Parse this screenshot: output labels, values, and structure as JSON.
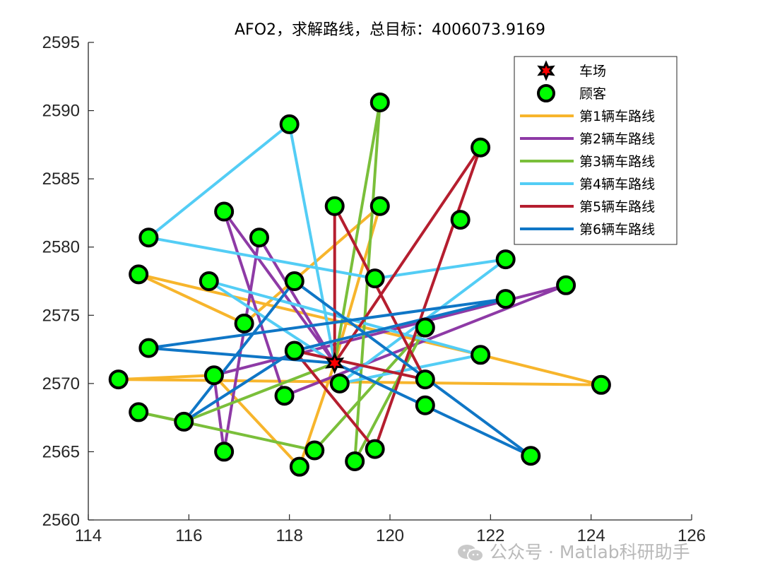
{
  "chart_data": {
    "type": "line",
    "title": "AFO2，求解路线，总目标：4006073.9169",
    "xlabel": "",
    "ylabel": "",
    "xlim": [
      114,
      126
    ],
    "ylim": [
      2560,
      2595
    ],
    "xticks": [
      114,
      116,
      118,
      120,
      122,
      124,
      126
    ],
    "yticks": [
      2560,
      2565,
      2570,
      2575,
      2580,
      2585,
      2590,
      2595
    ],
    "xtick_labels": [
      "114",
      "116",
      "118",
      "120",
      "122",
      "124",
      "126"
    ],
    "ytick_labels": [
      "2560",
      "2565",
      "2570",
      "2575",
      "2580",
      "2585",
      "2590",
      "2595"
    ],
    "grid": false,
    "legend_position": "top-right",
    "depot": {
      "name": "车场",
      "x": 118.9,
      "y": 2571.5,
      "color": "#ff0000"
    },
    "customers": {
      "name": "顾客",
      "color": "#00ff00",
      "points": [
        {
          "x": 114.6,
          "y": 2570.3
        },
        {
          "x": 115.0,
          "y": 2578.0
        },
        {
          "x": 115.2,
          "y": 2580.7
        },
        {
          "x": 115.2,
          "y": 2572.6
        },
        {
          "x": 115.0,
          "y": 2567.9
        },
        {
          "x": 115.9,
          "y": 2567.2
        },
        {
          "x": 116.4,
          "y": 2577.5
        },
        {
          "x": 116.7,
          "y": 2582.6
        },
        {
          "x": 116.7,
          "y": 2565.0
        },
        {
          "x": 116.5,
          "y": 2570.6
        },
        {
          "x": 117.1,
          "y": 2574.4
        },
        {
          "x": 117.4,
          "y": 2580.7
        },
        {
          "x": 118.0,
          "y": 2589.0
        },
        {
          "x": 118.1,
          "y": 2577.5
        },
        {
          "x": 118.1,
          "y": 2572.4
        },
        {
          "x": 117.9,
          "y": 2569.1
        },
        {
          "x": 118.2,
          "y": 2563.9
        },
        {
          "x": 118.5,
          "y": 2565.1
        },
        {
          "x": 118.9,
          "y": 2583.0
        },
        {
          "x": 119.0,
          "y": 2570.0
        },
        {
          "x": 119.3,
          "y": 2564.3
        },
        {
          "x": 119.8,
          "y": 2590.6
        },
        {
          "x": 119.8,
          "y": 2583.0
        },
        {
          "x": 119.7,
          "y": 2577.7
        },
        {
          "x": 119.7,
          "y": 2565.2
        },
        {
          "x": 120.7,
          "y": 2574.1
        },
        {
          "x": 120.7,
          "y": 2570.3
        },
        {
          "x": 120.7,
          "y": 2568.4
        },
        {
          "x": 121.4,
          "y": 2582.0
        },
        {
          "x": 121.8,
          "y": 2587.3
        },
        {
          "x": 121.8,
          "y": 2572.1
        },
        {
          "x": 122.3,
          "y": 2579.1
        },
        {
          "x": 122.3,
          "y": 2576.2
        },
        {
          "x": 122.8,
          "y": 2564.7
        },
        {
          "x": 123.5,
          "y": 2577.2
        },
        {
          "x": 124.2,
          "y": 2569.9
        }
      ]
    },
    "series": [
      {
        "name": "第1辆车路线",
        "color": "#f7b52c",
        "points": [
          [
            118.9,
            2571.5
          ],
          [
            119.8,
            2583.0
          ],
          [
            117.1,
            2574.4
          ],
          [
            115.0,
            2578.0
          ],
          [
            121.8,
            2572.1
          ],
          [
            124.2,
            2569.9
          ],
          [
            114.6,
            2570.3
          ],
          [
            116.5,
            2570.6
          ],
          [
            118.2,
            2563.9
          ],
          [
            118.9,
            2571.5
          ]
        ]
      },
      {
        "name": "第2辆车路线",
        "color": "#8e3aa6",
        "points": [
          [
            118.9,
            2571.5
          ],
          [
            116.7,
            2582.6
          ],
          [
            117.9,
            2569.1
          ],
          [
            123.5,
            2577.2
          ],
          [
            116.5,
            2570.6
          ],
          [
            116.7,
            2565.0
          ],
          [
            117.4,
            2580.7
          ],
          [
            118.9,
            2571.5
          ]
        ]
      },
      {
        "name": "第3辆车路线",
        "color": "#7abf3a",
        "points": [
          [
            118.9,
            2571.5
          ],
          [
            119.8,
            2590.6
          ],
          [
            119.3,
            2564.3
          ],
          [
            120.7,
            2574.1
          ],
          [
            118.5,
            2565.1
          ],
          [
            115.0,
            2567.9
          ],
          [
            115.9,
            2567.2
          ],
          [
            118.9,
            2571.5
          ]
        ]
      },
      {
        "name": "第4辆车路线",
        "color": "#53cdf5",
        "points": [
          [
            118.9,
            2571.5
          ],
          [
            118.0,
            2589.0
          ],
          [
            115.2,
            2580.7
          ],
          [
            119.7,
            2577.7
          ],
          [
            122.3,
            2579.1
          ],
          [
            119.0,
            2570.0
          ],
          [
            121.8,
            2572.1
          ],
          [
            116.4,
            2577.5
          ],
          [
            118.9,
            2571.5
          ]
        ]
      },
      {
        "name": "第5辆车路线",
        "color": "#b51e2f",
        "points": [
          [
            118.9,
            2571.5
          ],
          [
            118.9,
            2583.0
          ],
          [
            120.7,
            2570.3
          ],
          [
            118.1,
            2572.4
          ],
          [
            119.7,
            2565.2
          ],
          [
            121.8,
            2587.3
          ],
          [
            118.9,
            2571.5
          ]
        ]
      },
      {
        "name": "第6辆车路线",
        "color": "#0f76c6",
        "points": [
          [
            118.9,
            2571.5
          ],
          [
            115.2,
            2572.6
          ],
          [
            122.3,
            2576.2
          ],
          [
            118.1,
            2572.4
          ],
          [
            115.9,
            2567.2
          ],
          [
            118.1,
            2577.5
          ],
          [
            122.8,
            2564.7
          ],
          [
            118.9,
            2571.5
          ]
        ]
      }
    ]
  },
  "watermark": {
    "text": "公众号 · Matlab科研助手",
    "icon": "wechat-icon"
  }
}
